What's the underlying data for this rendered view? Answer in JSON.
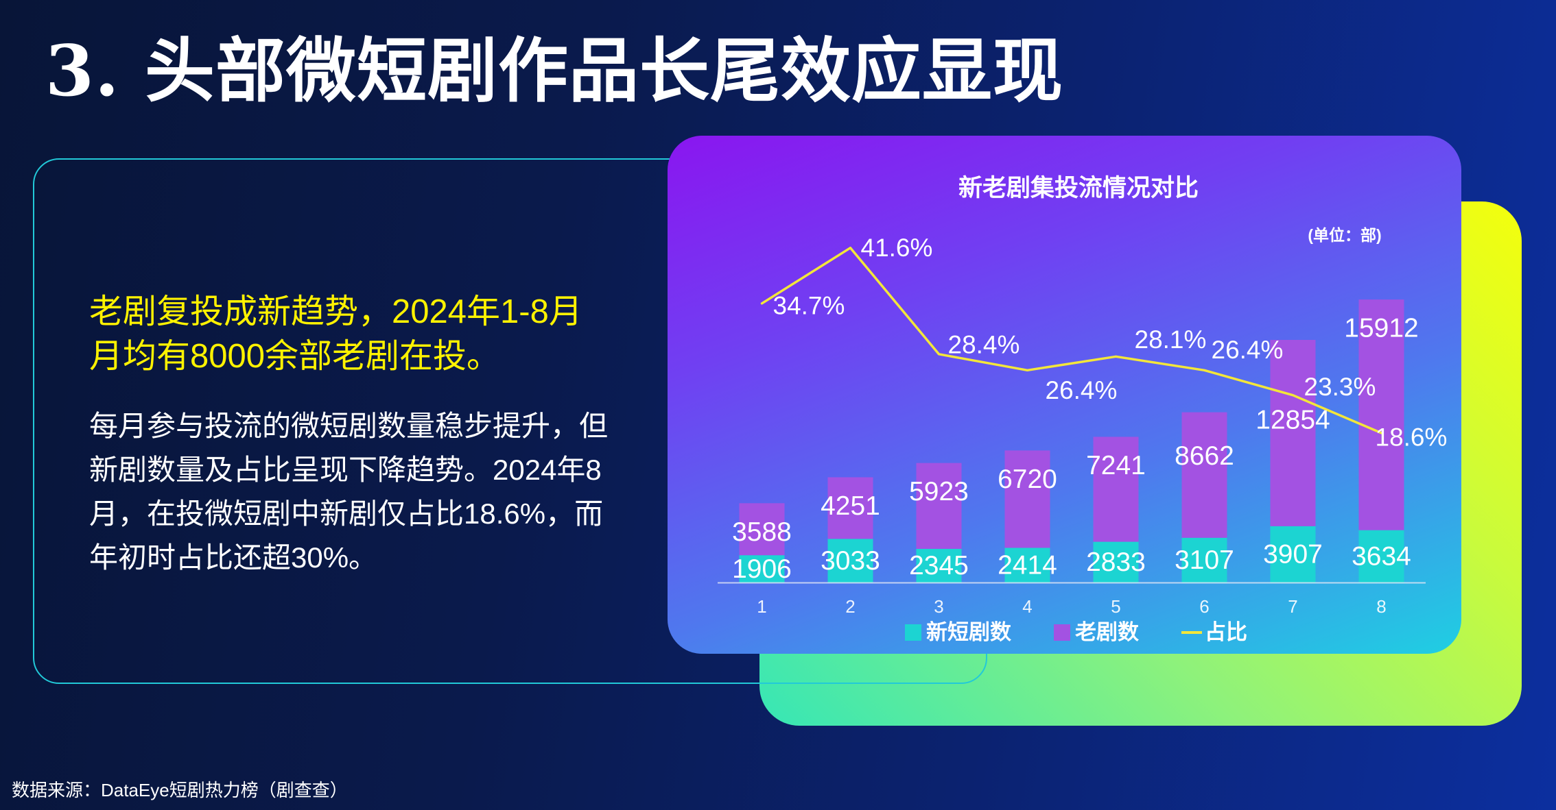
{
  "slide": {
    "title": "3. 头部微短剧作品长尾效应显现",
    "source": "数据来源：DataEye短剧热力榜（剧查查）"
  },
  "summary": {
    "highlight_lines": [
      "老剧复投成新趋势，2024年1-8月",
      "月均有8000余部老剧在投。"
    ],
    "body_lines": [
      "每月参与投流的微短剧数量稳步提升，但",
      "新剧数量及占比呈现下降趋势。2024年8",
      "月，在投微短剧中新剧仅占比18.6%，而",
      "年初时占比还超30%。"
    ]
  },
  "chart_data": {
    "type": "bar",
    "stacked": true,
    "title": "新老剧集投流情况对比",
    "unit_label": "(单位：部)",
    "categories": [
      "1",
      "2",
      "3",
      "4",
      "5",
      "6",
      "7",
      "8"
    ],
    "series": [
      {
        "name": "新短剧数",
        "type": "bar",
        "color": "#1cd4d2",
        "values": [
          1906,
          3033,
          2345,
          2414,
          2833,
          3107,
          3907,
          3634
        ]
      },
      {
        "name": "老剧数",
        "type": "bar",
        "color": "#a352e2",
        "values": [
          3588,
          4251,
          5923,
          6720,
          7241,
          8662,
          12854,
          15912
        ]
      },
      {
        "name": "占比",
        "type": "line",
        "secondary_axis": true,
        "color": "#f3e63a",
        "values": [
          34.7,
          41.6,
          28.4,
          26.4,
          28.1,
          26.4,
          23.3,
          18.6
        ],
        "suffix": "%"
      }
    ],
    "ylim": [
      0,
      20000
    ],
    "y2lim": [
      0,
      50
    ],
    "grid": false,
    "legend": "bottom"
  }
}
